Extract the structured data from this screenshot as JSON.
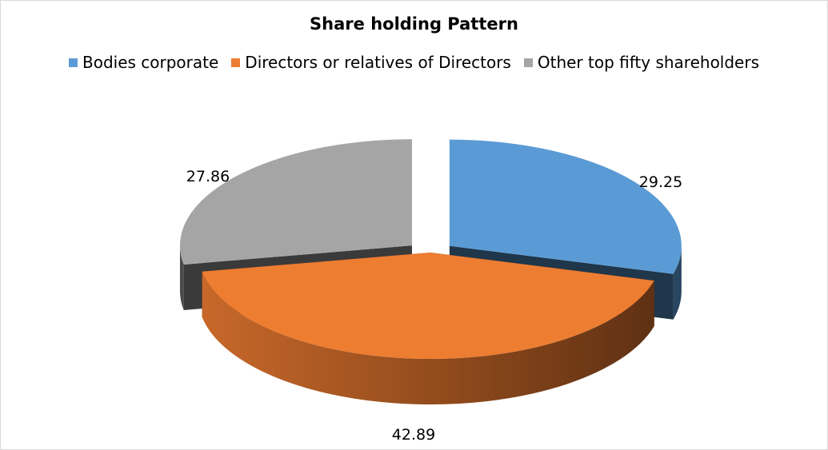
{
  "chart_data": {
    "type": "pie",
    "title": "Share holding Pattern",
    "legend_position": "top",
    "series": [
      {
        "categories": [
          "Bodies corporate",
          "Directors or relatives of Directors",
          "Other top fifty shareholders"
        ],
        "values": [
          29.25,
          42.89,
          27.86
        ],
        "labels": [
          "29.25",
          "42.89",
          "27.86"
        ],
        "colors": [
          "#5b9bd5",
          "#ed7d31",
          "#a5a5a5"
        ]
      }
    ],
    "style": "3d-exploded"
  }
}
